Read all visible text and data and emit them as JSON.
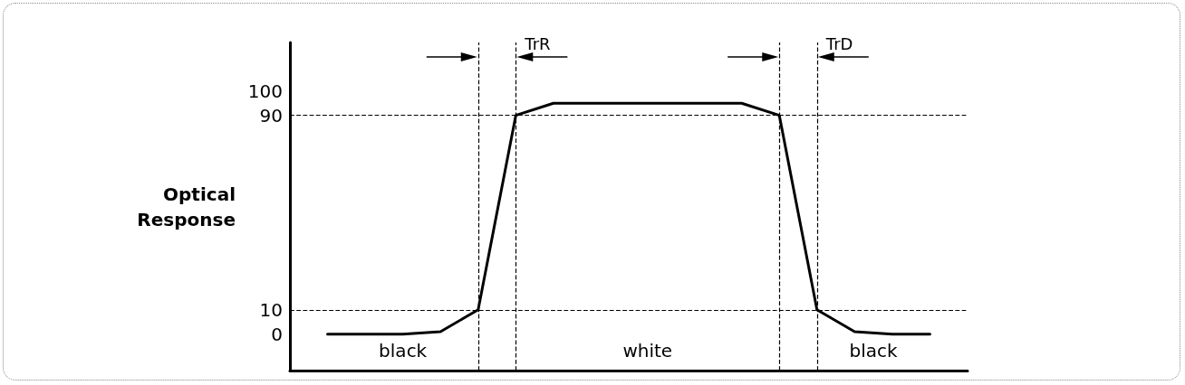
{
  "chart_data": {
    "type": "line",
    "ylabel": "Optical Response",
    "categories": [
      null,
      null,
      null,
      null,
      null,
      null,
      null,
      null,
      null,
      null,
      null,
      null,
      null,
      null,
      null,
      null,
      null,
      null,
      null
    ],
    "series": [
      {
        "color": "#000000",
        "values": [
          null,
          0,
          0,
          0,
          1,
          10,
          90,
          95,
          95,
          95,
          95,
          95,
          95,
          90,
          10,
          1,
          0,
          0,
          null
        ]
      }
    ],
    "ylim": [
      -15,
      120
    ],
    "yticks": [
      0,
      10,
      90,
      100
    ],
    "tick_labels": "y",
    "grid": "x",
    "marker": "none",
    "line_style": "solid",
    "ref_lines": [
      {
        "axis": "y",
        "value": 10,
        "line_style": "dashed",
        "color": "#000000"
      },
      {
        "axis": "y",
        "value": 90,
        "line_style": "dashed",
        "color": "#000000"
      }
    ],
    "annotations": [
      "TrR",
      "TrD",
      "black",
      "white",
      "black"
    ]
  }
}
